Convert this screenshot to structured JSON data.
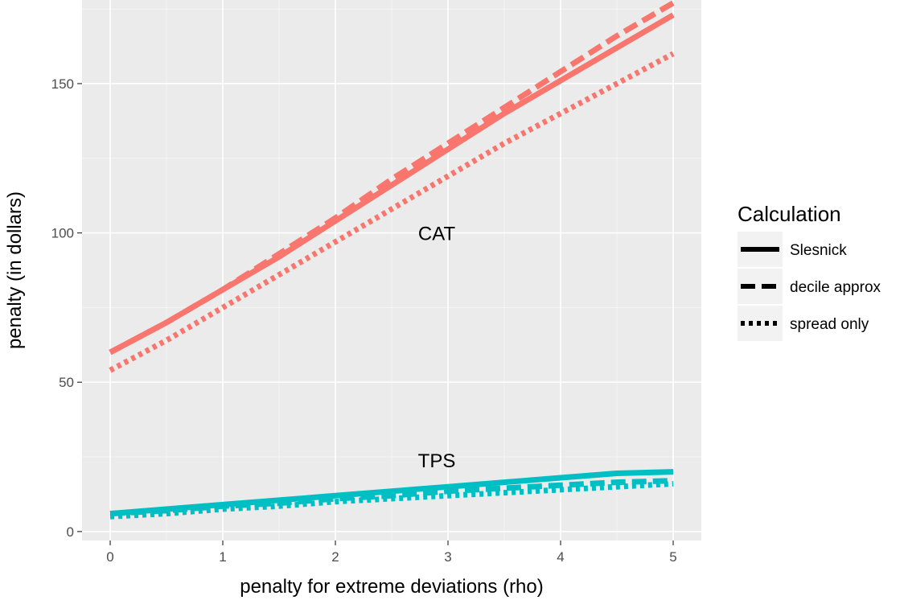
{
  "chart_data": {
    "type": "line",
    "title": "",
    "xlabel": "penalty for extreme deviations (rho)",
    "ylabel": "penalty (in dollars)",
    "xlim": [
      -0.25,
      5.25
    ],
    "ylim": [
      -3,
      178
    ],
    "x_ticks": [
      0,
      1,
      2,
      3,
      4,
      5
    ],
    "y_ticks": [
      0,
      50,
      100,
      150
    ],
    "x": [
      0,
      0.5,
      1,
      1.5,
      2,
      2.5,
      3,
      3.5,
      4,
      4.5,
      5
    ],
    "grid": true,
    "legend": {
      "title": "Calculation",
      "placement": "right",
      "entries": [
        {
          "label": "Slesnick",
          "linetype": "solid"
        },
        {
          "label": "decile approx",
          "linetype": "dashed"
        },
        {
          "label": "spread only",
          "linetype": "dotted"
        }
      ]
    },
    "colors": {
      "CAT": "#F8766D",
      "TPS": "#00BFC4"
    },
    "series": [
      {
        "group": "CAT",
        "linetype": "solid",
        "values": [
          60,
          70,
          81,
          92,
          104,
          116,
          128,
          140,
          151,
          162,
          173
        ]
      },
      {
        "group": "CAT",
        "linetype": "dashed",
        "values": [
          60,
          70,
          81,
          93,
          105,
          118,
          130,
          142,
          154,
          166,
          177
        ]
      },
      {
        "group": "CAT",
        "linetype": "dotted",
        "values": [
          54,
          64,
          75,
          86,
          97,
          108,
          119,
          130,
          140,
          150,
          160
        ]
      },
      {
        "group": "TPS",
        "linetype": "solid",
        "values": [
          6,
          7.5,
          9,
          10.5,
          12,
          13.5,
          15,
          16.5,
          18,
          19.5,
          20
        ]
      },
      {
        "group": "TPS",
        "linetype": "dashed",
        "values": [
          6,
          7,
          8.5,
          9.5,
          11,
          12,
          13.5,
          14.5,
          15.5,
          16.5,
          17
        ]
      },
      {
        "group": "TPS",
        "linetype": "dotted",
        "values": [
          5,
          6,
          7.5,
          8.5,
          10,
          11,
          12,
          13,
          14,
          15,
          16
        ]
      }
    ],
    "annotations": [
      {
        "text": "CAT",
        "x": 2.9,
        "y": 100
      },
      {
        "text": "TPS",
        "x": 2.9,
        "y": 24
      }
    ]
  }
}
